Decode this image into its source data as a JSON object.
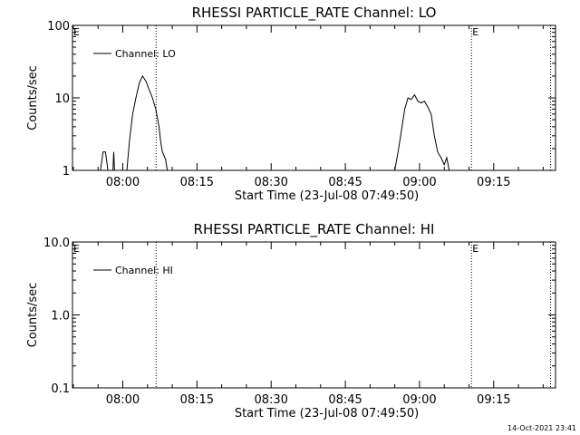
{
  "footer": {
    "timestamp": "14-Oct-2021 23:41"
  },
  "chart_data": [
    {
      "type": "line",
      "title": "RHESSI PARTICLE_RATE Channel: LO",
      "xlabel": "Start Time (23-Jul-08 07:49:50)",
      "ylabel": "Counts/sec",
      "y_scale": "log",
      "xlim": [
        "07:49:50",
        "09:27:30"
      ],
      "ylim": [
        1,
        100
      ],
      "xticks": [
        "08:00",
        "08:15",
        "08:30",
        "08:45",
        "09:00",
        "09:15"
      ],
      "yticks": [
        "1",
        "10",
        "100"
      ],
      "legend": {
        "position": "top-left",
        "entries": [
          "Channel: LO"
        ]
      },
      "vertical_markers": [
        {
          "time": "08:06:45",
          "style": "dotted",
          "label": ""
        },
        {
          "time": "09:10:30",
          "style": "dotted",
          "label": "E"
        },
        {
          "time": "09:26:30",
          "style": "dotted",
          "label": ""
        }
      ],
      "axis_flags": [
        "E"
      ],
      "series": [
        {
          "name": "Channel: LO",
          "segments": [
            {
              "x": [
                "07:55:30",
                "07:56:00",
                "07:56:30",
                "07:57:00"
              ],
              "y": [
                1,
                1.8,
                1.8,
                1
              ]
            },
            {
              "x": [
                "07:58:00",
                "07:58:10",
                "07:58:20"
              ],
              "y": [
                1,
                1.8,
                1
              ]
            },
            {
              "x": [
                "08:00:50",
                "08:01:20",
                "08:02:00",
                "08:02:40",
                "08:03:20",
                "08:04:00",
                "08:04:40",
                "08:05:20",
                "08:06:00",
                "08:06:40",
                "08:07:20",
                "08:07:40",
                "08:08:00",
                "08:08:20",
                "08:08:40",
                "08:09:00"
              ],
              "y": [
                1,
                2.5,
                6,
                10,
                16,
                20,
                17,
                13,
                10,
                7,
                4,
                2.5,
                1.8,
                1.6,
                1.4,
                1
              ]
            },
            {
              "x": [
                "08:55:00",
                "08:55:40",
                "08:56:20",
                "08:57:00",
                "08:57:40",
                "08:58:20",
                "08:59:00",
                "08:59:40",
                "09:00:20",
                "09:01:00",
                "09:01:40",
                "09:02:20",
                "09:03:00",
                "09:03:40",
                "09:04:20",
                "09:05:00",
                "09:05:30",
                "09:06:00"
              ],
              "y": [
                1,
                1.8,
                3.5,
                7,
                10,
                9.5,
                11,
                9,
                8.5,
                9,
                7.5,
                6,
                3,
                1.8,
                1.5,
                1.2,
                1.5,
                1
              ]
            }
          ]
        }
      ]
    },
    {
      "type": "line",
      "title": "RHESSI PARTICLE_RATE Channel: HI",
      "xlabel": "Start Time (23-Jul-08 07:49:50)",
      "ylabel": "Counts/sec",
      "y_scale": "log",
      "xlim": [
        "07:49:50",
        "09:27:30"
      ],
      "ylim": [
        0.1,
        10
      ],
      "xticks": [
        "08:00",
        "08:15",
        "08:30",
        "08:45",
        "09:00",
        "09:15"
      ],
      "yticks": [
        "0.1",
        "1.0",
        "10.0"
      ],
      "legend": {
        "position": "top-left",
        "entries": [
          "Channel: HI"
        ]
      },
      "vertical_markers": [
        {
          "time": "08:06:45",
          "style": "dotted",
          "label": ""
        },
        {
          "time": "09:10:30",
          "style": "dotted",
          "label": "E"
        },
        {
          "time": "09:26:30",
          "style": "dotted",
          "label": ""
        }
      ],
      "axis_flags": [
        "E"
      ],
      "series": [
        {
          "name": "Channel: HI",
          "segments": []
        }
      ]
    }
  ]
}
